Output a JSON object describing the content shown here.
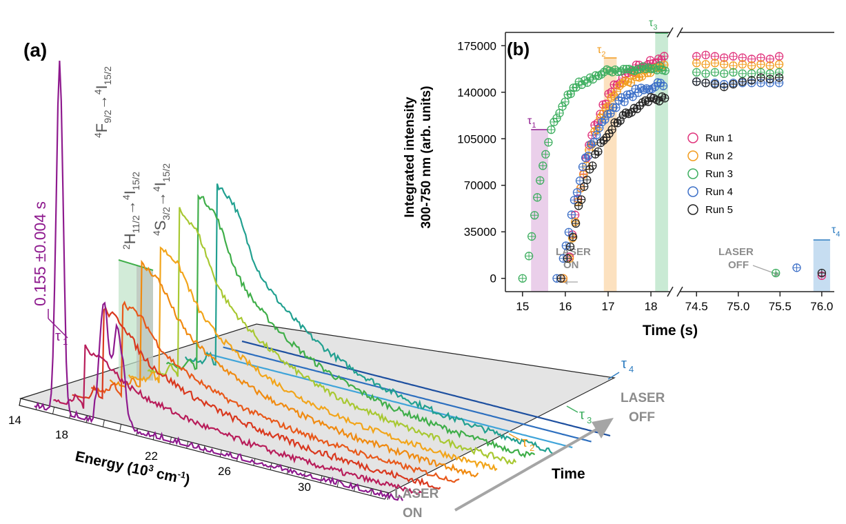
{
  "colors": {
    "spectra": [
      "#8e1a8e",
      "#b81d5a",
      "#d9381e",
      "#e8581a",
      "#f08a10",
      "#f2a51a",
      "#a8c832",
      "#3fae49",
      "#21a090",
      "#3fa4d9",
      "#2d6fbf",
      "#1d4f9f"
    ],
    "run_colors": [
      "#e0317a",
      "#f29b1c",
      "#3dae5f",
      "#3c6fc7",
      "#222222"
    ],
    "tau1": "#8e1a8e",
    "tau2": "#f29b1c",
    "tau3": "#3dae5f",
    "tau4": "#2d7cc0",
    "laser_label": "#8c8c8c",
    "band_tau1": "#e6c7e6",
    "band_tau2": "#fbdcb4",
    "band_tau3": "#bfe6cc",
    "band_tau4": "#bcd7ee"
  },
  "panel_a": {
    "label": "(a)",
    "peak1_level": "4",
    "peak1_upper": "F",
    "peak1_upper_sub": "9/2",
    "peak1_lower_level": "4",
    "peak1_lower": "I",
    "peak1_lower_sub": "15/2",
    "peak2_level": "2",
    "peak2_upper": "H",
    "peak2_upper_sub": "11/2",
    "peak2_lower_level": "4",
    "peak2_lower": "I",
    "peak2_lower_sub": "15/2",
    "peak3_level": "4",
    "peak3_upper": "S",
    "peak3_upper_sub": "3/2",
    "peak3_lower_level": "4",
    "peak3_lower": "I",
    "peak3_lower_sub": "15/2",
    "time_constant": "0.155 ±0.004 s",
    "tau1": "τ",
    "tau1_sub": "1",
    "tau2": "τ",
    "tau2_sub": "2",
    "tau3": "τ",
    "tau3_sub": "3",
    "tau4": "τ",
    "tau4_sub": "4",
    "energy_axis_label": "Energy (10",
    "energy_axis_exp": "3",
    "energy_axis_unit": " cm",
    "energy_axis_unit_exp": "-1",
    "energy_axis_close": ")",
    "energy_ticks": [
      "14",
      "18",
      "22",
      "26",
      "30"
    ],
    "time_axis_label": "Time",
    "laser_on_line1": "LASER",
    "laser_on_line2": "ON",
    "laser_off_line1": "LASER",
    "laser_off_line2": "OFF"
  },
  "panel_b": {
    "label": "(b)",
    "ylabel_line1": "Integrated intensity",
    "ylabel_line2": "300-750 nm (arb. units)",
    "xlabel": "Time (s)",
    "laser_on_line1": "LASER",
    "laser_on_line2": "ON",
    "laser_off_line1": "LASER",
    "laser_off_line2": "OFF",
    "tau1": "τ",
    "tau1_sub": "1",
    "tau2": "τ",
    "tau2_sub": "2",
    "tau3": "τ",
    "tau3_sub": "3",
    "tau4": "τ",
    "tau4_sub": "4"
  },
  "chart_data": [
    {
      "type": "line",
      "panel": "a",
      "xlabel": "Energy (10³ cm⁻¹)",
      "x_ticks": [
        14,
        18,
        22,
        26,
        30
      ],
      "xlim": [
        14,
        33
      ],
      "description_axis_depth": "Time",
      "spectra_count": 12,
      "peaks": [
        {
          "label": "4F9/2→4I15/2",
          "energy": 15.2
        },
        {
          "label": "2H11/2→4I15/2",
          "energy": 19.1
        },
        {
          "label": "4S3/2→4I15/2",
          "energy": 18.3
        }
      ],
      "series": [
        {
          "values": [
            0.05,
            1.0,
            0.35,
            0.2
          ]
        },
        {
          "values": [
            0.02,
            0.33,
            0.42,
            0.12
          ]
        },
        {
          "values": [
            0.01,
            0.45,
            0.38,
            0.15
          ]
        },
        {
          "values": [
            0.05,
            0.55,
            0.2,
            0.2
          ]
        },
        {
          "values": [
            0.05,
            0.68,
            0.25,
            0.22
          ]
        },
        {
          "values": [
            0.05,
            0.78,
            0.28,
            0.25
          ]
        },
        {
          "values": [
            0.05,
            0.92,
            0.3,
            0.26
          ]
        },
        {
          "values": [
            0.05,
            0.98,
            0.32,
            0.27
          ]
        },
        {
          "values": [
            0.05,
            1.0,
            0.34,
            0.28
          ]
        },
        {
          "values": [
            0.02,
            0.02,
            0.02,
            0.02
          ]
        },
        {
          "values": [
            0.01,
            0.01,
            0.01,
            0.01
          ]
        },
        {
          "values": [
            0.0,
            0.0,
            0.0,
            0.0
          ]
        }
      ],
      "annotations": [
        "τ1",
        "τ2",
        "τ3",
        "τ4",
        "0.155 ±0.004 s",
        "LASER ON",
        "LASER OFF"
      ]
    },
    {
      "type": "scatter",
      "panel": "b",
      "xlabel": "Time (s)",
      "ylabel": "Integrated intensity 300-750 nm (arb. units)",
      "x_ticks_left": [
        "15",
        "16",
        "17",
        "18"
      ],
      "x_ticks_right": [
        "74.5",
        "75.0",
        "75.5",
        "76.0"
      ],
      "y_ticks": [
        "0",
        "35000",
        "70000",
        "105000",
        "140000",
        "175000"
      ],
      "ylim": [
        -10000,
        185000
      ],
      "legend_position": "center-right",
      "bands": [
        {
          "label": "τ1",
          "from": 15.2,
          "to": 15.6
        },
        {
          "label": "τ2",
          "from": 16.9,
          "to": 17.2
        },
        {
          "label": "τ3",
          "from": 18.1,
          "to": 18.4
        },
        {
          "label": "τ4",
          "from": 75.9,
          "to": 76.1
        }
      ],
      "series": [
        {
          "name": "Run 1",
          "tau_on": 0.36,
          "plateau": 169000,
          "late_values": [
            167000,
            168000,
            167000,
            166000,
            167000,
            166000,
            165000,
            166000,
            165000,
            167000
          ],
          "off_value": 2000
        },
        {
          "name": "Run 2",
          "tau_on": 0.36,
          "plateau": 162000,
          "late_values": [
            162000,
            161000,
            162000,
            161000,
            160000,
            161000,
            160000,
            161000,
            160000,
            161000
          ],
          "off_value": 6000
        },
        {
          "name": "Run 3",
          "tau_on": 0.3,
          "plateau": 158000,
          "late_values": [
            155000,
            154000,
            155000,
            154000,
            155000,
            154000,
            154000,
            155000,
            154000,
            155000
          ],
          "off_value": 4000
        },
        {
          "name": "Run 4",
          "tau_on": 0.4,
          "plateau": 150000,
          "late_values": [
            148000,
            147000,
            147000,
            146000,
            147000,
            147000,
            147000,
            147000,
            147000,
            147000
          ],
          "off_value": 8000
        },
        {
          "name": "Run 5",
          "tau_on": 0.42,
          "plateau": 141000,
          "late_values": [
            148000,
            147000,
            146000,
            144000,
            146000,
            148000,
            149000,
            151000,
            150000,
            151000
          ],
          "off_value": 4000
        }
      ]
    }
  ]
}
